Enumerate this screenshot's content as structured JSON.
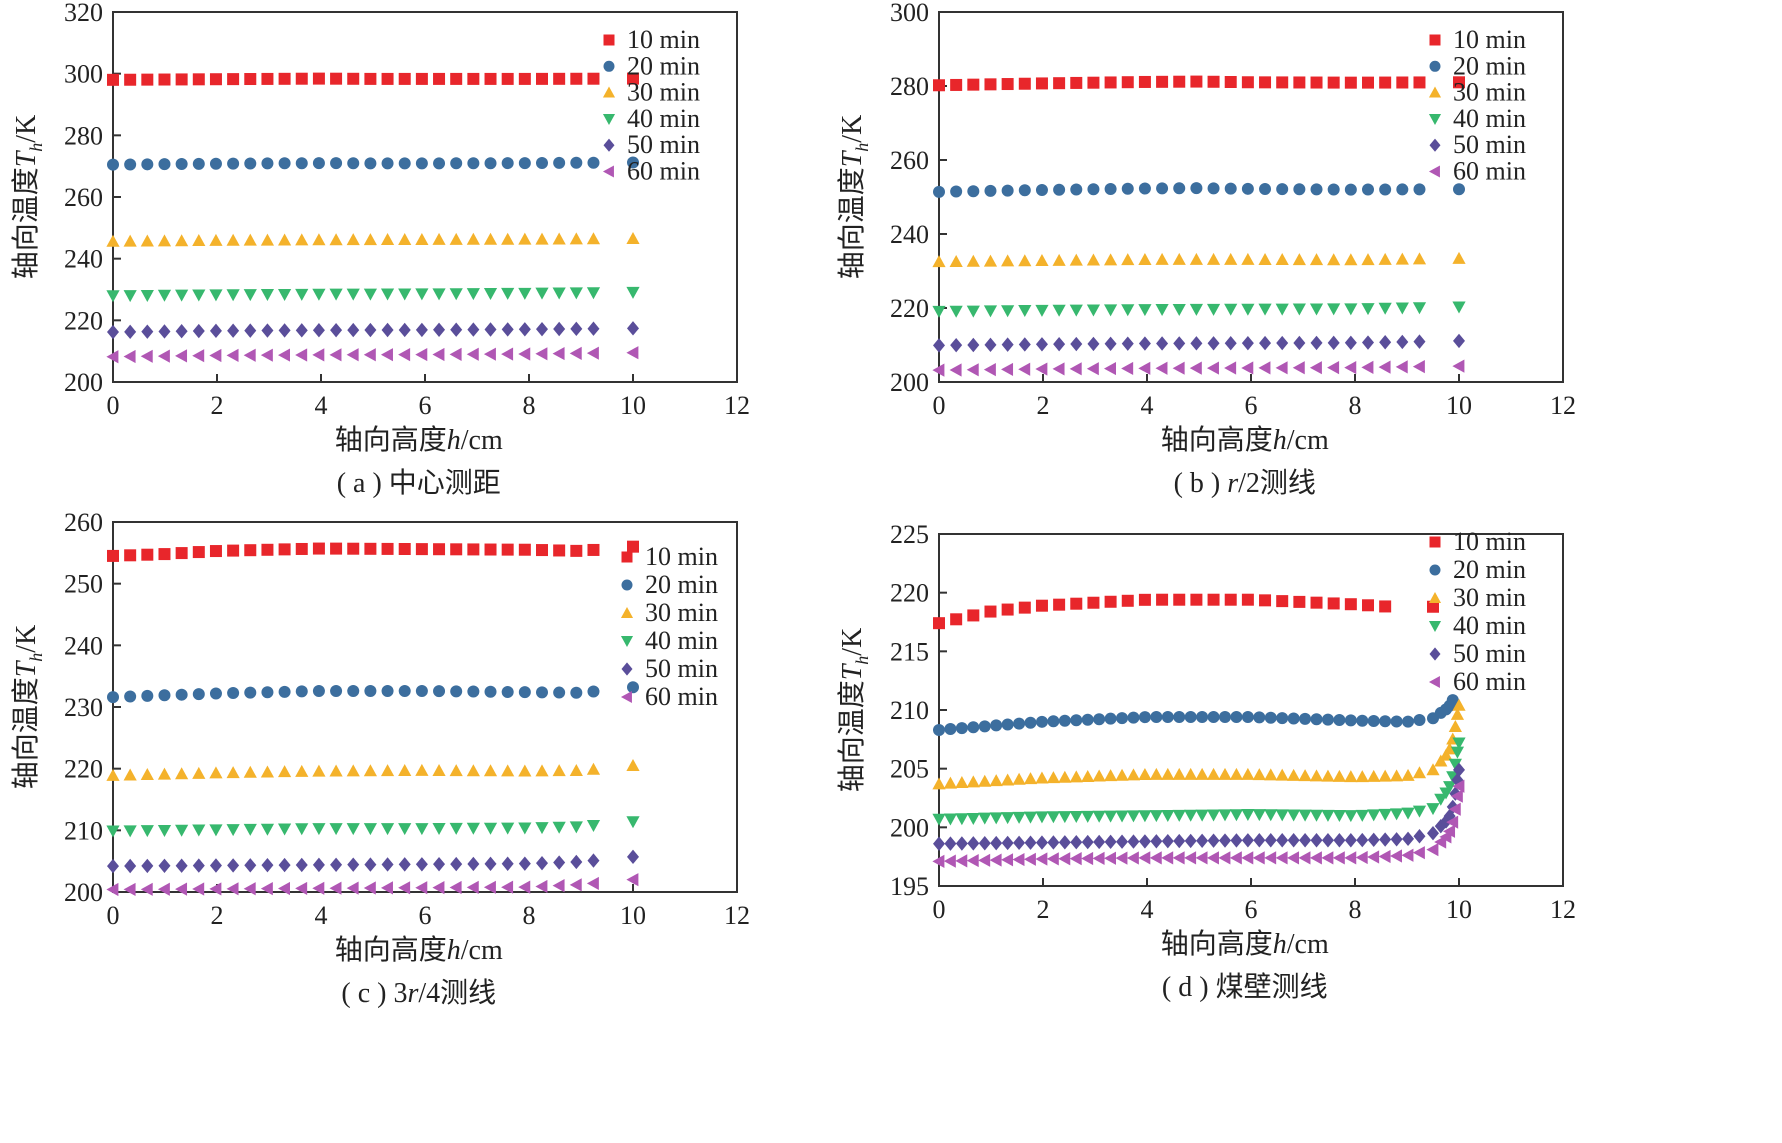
{
  "figure": {
    "chart_data": [
      {
        "type": "scatter",
        "caption": "( a ) 中心测距",
        "xlabel": "轴向高度h/cm",
        "ylabel": "轴向温度T_h/K",
        "xlim": [
          0,
          12
        ],
        "ylim": [
          200,
          320
        ],
        "xticks": [
          0,
          2,
          4,
          6,
          8,
          10,
          12
        ],
        "yticks": [
          200,
          220,
          240,
          260,
          280,
          300,
          320
        ],
        "legend_position": "top-right",
        "series": [
          {
            "name": "10 min",
            "color": "#e8262b",
            "marker": "square",
            "x": [
              0,
              2,
              4,
              5,
              6,
              8,
              10
            ],
            "y": [
              298.0,
              298.2,
              298.4,
              298.3,
              298.3,
              298.3,
              298.4
            ]
          },
          {
            "name": "20 min",
            "color": "#3c6e9e",
            "marker": "circle",
            "x": [
              0,
              2,
              4,
              5,
              6,
              8,
              10
            ],
            "y": [
              270.5,
              270.8,
              271.0,
              270.9,
              270.9,
              271.0,
              271.2
            ]
          },
          {
            "name": "30 min",
            "color": "#f4b22b",
            "marker": "triangle-up",
            "x": [
              0,
              2,
              4,
              6,
              8,
              10
            ],
            "y": [
              245.6,
              245.9,
              246.1,
              246.2,
              246.3,
              246.5
            ]
          },
          {
            "name": "40 min",
            "color": "#37b86e",
            "marker": "triangle-down",
            "x": [
              0,
              2,
              4,
              6,
              8,
              10
            ],
            "y": [
              228.0,
              228.3,
              228.5,
              228.6,
              228.8,
              229.1
            ]
          },
          {
            "name": "50 min",
            "color": "#5a4e9a",
            "marker": "diamond",
            "x": [
              0,
              2,
              4,
              6,
              8,
              10
            ],
            "y": [
              216.2,
              216.6,
              216.8,
              216.9,
              217.1,
              217.4
            ]
          },
          {
            "name": "60 min",
            "color": "#b057b4",
            "marker": "triangle-left",
            "x": [
              0,
              2,
              4,
              6,
              8,
              10
            ],
            "y": [
              208.2,
              208.6,
              208.8,
              208.9,
              209.1,
              209.5
            ]
          }
        ]
      },
      {
        "type": "scatter",
        "caption": "( b ) r/2测线",
        "xlabel": "轴向高度h/cm",
        "ylabel": "轴向温度T_h/K",
        "xlim": [
          0,
          12
        ],
        "ylim": [
          200,
          300
        ],
        "xticks": [
          0,
          2,
          4,
          6,
          8,
          10,
          12
        ],
        "yticks": [
          200,
          220,
          240,
          260,
          280,
          300
        ],
        "legend_position": "top-right",
        "series": [
          {
            "name": "10 min",
            "color": "#e8262b",
            "marker": "square",
            "x": [
              0,
              2,
              4,
              5,
              6,
              8,
              10
            ],
            "y": [
              280.2,
              280.7,
              281.1,
              281.2,
              281.0,
              280.9,
              281.0
            ]
          },
          {
            "name": "20 min",
            "color": "#3c6e9e",
            "marker": "circle",
            "x": [
              0,
              2,
              4,
              5,
              6,
              8,
              10
            ],
            "y": [
              251.4,
              251.9,
              252.3,
              252.4,
              252.2,
              252.0,
              252.1
            ]
          },
          {
            "name": "30 min",
            "color": "#f4b22b",
            "marker": "triangle-up",
            "x": [
              0,
              2,
              4,
              6,
              8,
              10
            ],
            "y": [
              232.5,
              232.8,
              233.1,
              233.1,
              233.0,
              233.4
            ]
          },
          {
            "name": "40 min",
            "color": "#37b86e",
            "marker": "triangle-down",
            "x": [
              0,
              2,
              4,
              6,
              8,
              10
            ],
            "y": [
              219.1,
              219.4,
              219.6,
              219.7,
              219.8,
              220.3
            ]
          },
          {
            "name": "50 min",
            "color": "#5a4e9a",
            "marker": "diamond",
            "x": [
              0,
              2,
              4,
              6,
              8,
              10
            ],
            "y": [
              209.9,
              210.2,
              210.4,
              210.5,
              210.6,
              211.1
            ]
          },
          {
            "name": "60 min",
            "color": "#b057b4",
            "marker": "triangle-left",
            "x": [
              0,
              2,
              4,
              6,
              8,
              10
            ],
            "y": [
              203.2,
              203.5,
              203.7,
              203.8,
              203.9,
              204.3
            ]
          }
        ]
      },
      {
        "type": "scatter",
        "caption": "( c ) 3r/4测线",
        "xlabel": "轴向高度h/cm",
        "ylabel": "轴向温度T_h/K",
        "xlim": [
          0,
          12
        ],
        "ylim": [
          200,
          260
        ],
        "xticks": [
          0,
          2,
          4,
          6,
          8,
          10,
          12
        ],
        "yticks": [
          200,
          210,
          220,
          230,
          240,
          250,
          260
        ],
        "legend_position": "top-right",
        "series": [
          {
            "name": "10 min",
            "color": "#e8262b",
            "marker": "square",
            "x": [
              0,
              1,
              2,
              4,
              6,
              8,
              9,
              10
            ],
            "y": [
              254.5,
              254.8,
              255.3,
              255.7,
              255.6,
              255.5,
              255.3,
              256.0
            ]
          },
          {
            "name": "20 min",
            "color": "#3c6e9e",
            "marker": "circle",
            "x": [
              0,
              2,
              4,
              6,
              8,
              9,
              10
            ],
            "y": [
              231.6,
              232.2,
              232.6,
              232.6,
              232.4,
              232.3,
              233.2
            ]
          },
          {
            "name": "30 min",
            "color": "#f4b22b",
            "marker": "triangle-up",
            "x": [
              0,
              2,
              4,
              6,
              8,
              9,
              10
            ],
            "y": [
              218.9,
              219.3,
              219.6,
              219.7,
              219.6,
              219.7,
              220.5
            ]
          },
          {
            "name": "40 min",
            "color": "#37b86e",
            "marker": "triangle-down",
            "x": [
              0,
              2,
              4,
              6,
              8,
              9,
              10
            ],
            "y": [
              209.9,
              210.1,
              210.3,
              210.3,
              210.4,
              210.6,
              211.4
            ]
          },
          {
            "name": "50 min",
            "color": "#5a4e9a",
            "marker": "diamond",
            "x": [
              0,
              2,
              4,
              6,
              8,
              9,
              10
            ],
            "y": [
              204.2,
              204.3,
              204.4,
              204.5,
              204.6,
              204.9,
              205.7
            ]
          },
          {
            "name": "60 min",
            "color": "#b057b4",
            "marker": "triangle-left",
            "x": [
              0,
              2,
              4,
              6,
              8,
              9,
              10
            ],
            "y": [
              200.4,
              200.5,
              200.6,
              200.7,
              200.8,
              201.2,
              202.0
            ]
          }
        ]
      },
      {
        "type": "scatter",
        "caption": "( d ) 煤壁测线",
        "xlabel": "轴向高度h/cm",
        "ylabel": "轴向温度T_h/K",
        "xlim": [
          0,
          12
        ],
        "ylim": [
          195,
          225
        ],
        "xticks": [
          0,
          2,
          4,
          6,
          8,
          10,
          12
        ],
        "yticks": [
          195,
          200,
          205,
          210,
          215,
          220,
          225
        ],
        "legend_position": "top-right",
        "series": [
          {
            "name": "10 min",
            "color": "#e8262b",
            "marker": "square",
            "x": [
              0,
              1,
              2,
              4,
              6,
              8,
              9,
              9.5
            ],
            "y": [
              217.4,
              218.4,
              218.9,
              219.4,
              219.4,
              219.0,
              218.7,
              218.8
            ]
          },
          {
            "name": "20 min",
            "color": "#3c6e9e",
            "marker": "circle",
            "x": [
              0,
              2,
              4,
              6,
              8,
              9,
              9.5,
              9.8,
              9.9
            ],
            "y": [
              208.3,
              209.0,
              209.4,
              209.4,
              209.1,
              209.0,
              209.3,
              210.2,
              211.0
            ]
          },
          {
            "name": "30 min",
            "color": "#f4b22b",
            "marker": "triangle-up",
            "x": [
              0,
              2,
              4,
              6,
              8,
              9,
              9.5,
              9.8,
              9.9,
              10
            ],
            "y": [
              203.7,
              204.2,
              204.5,
              204.5,
              204.3,
              204.4,
              204.9,
              206.4,
              207.8,
              210.4
            ]
          },
          {
            "name": "40 min",
            "color": "#37b86e",
            "marker": "triangle-down",
            "x": [
              0,
              2,
              4,
              6,
              8,
              9,
              9.5,
              9.8,
              9.9,
              10
            ],
            "y": [
              200.7,
              200.9,
              201.0,
              201.1,
              201.0,
              201.2,
              201.6,
              203.2,
              204.6,
              207.2
            ]
          },
          {
            "name": "50 min",
            "color": "#5a4e9a",
            "marker": "diamond",
            "x": [
              0,
              2,
              4,
              6,
              8,
              9,
              9.5,
              9.8,
              9.9,
              10
            ],
            "y": [
              198.6,
              198.7,
              198.8,
              198.9,
              198.9,
              199.0,
              199.5,
              200.7,
              202.0,
              204.9
            ]
          },
          {
            "name": "60 min",
            "color": "#b057b4",
            "marker": "triangle-left",
            "x": [
              0,
              2,
              4,
              6,
              8,
              9,
              9.5,
              9.8,
              9.9,
              10
            ],
            "y": [
              197.1,
              197.3,
              197.4,
              197.4,
              197.4,
              197.6,
              198.1,
              199.4,
              200.7,
              203.5
            ]
          }
        ]
      }
    ]
  }
}
